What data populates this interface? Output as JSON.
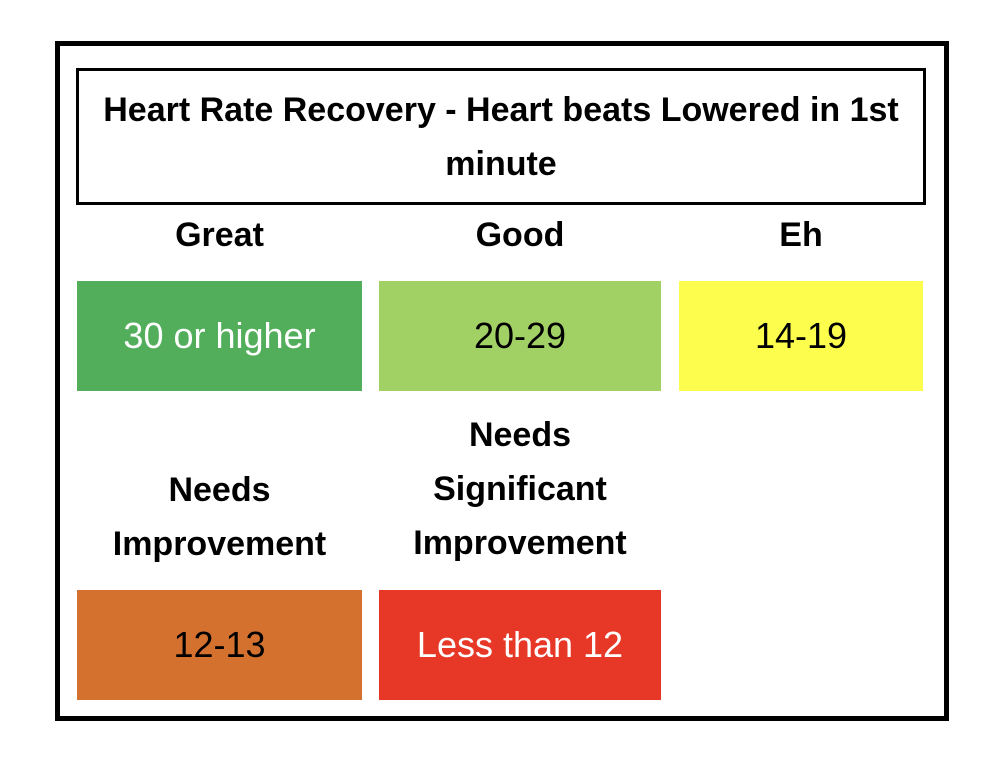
{
  "title": "Heart Rate Recovery - Heart beats Lowered in 1st minute",
  "categories": [
    {
      "label": "Great",
      "range": "30 or higher",
      "color": "#53AE5C",
      "text_color": "#ffffff"
    },
    {
      "label": "Good",
      "range": "20-29",
      "color": "#A1D065",
      "text_color": "#000000"
    },
    {
      "label": "Eh",
      "range": "14-19",
      "color": "#FDFD4E",
      "text_color": "#000000"
    },
    {
      "label": "Needs Improvement",
      "range": "12-13",
      "color": "#D4712F",
      "text_color": "#000000"
    },
    {
      "label": "Needs Significant Improvement",
      "range": "Less than 12",
      "color": "#E73727",
      "text_color": "#ffffff"
    }
  ]
}
